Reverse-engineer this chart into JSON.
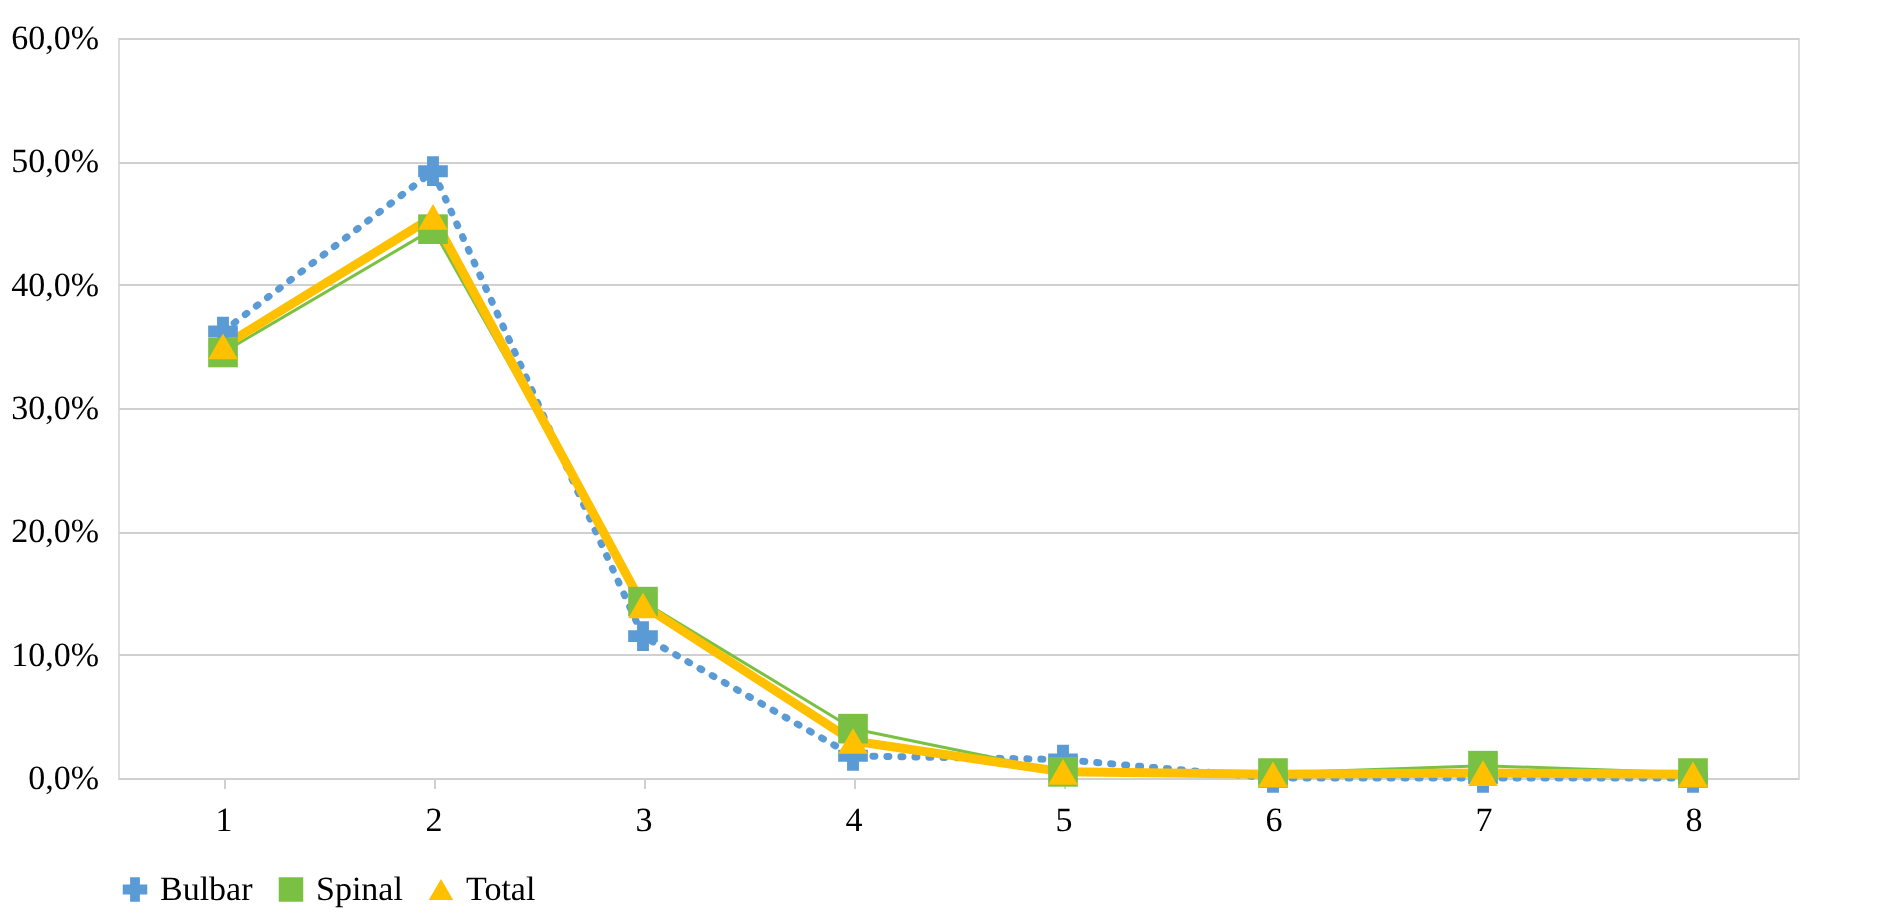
{
  "chart_data": {
    "type": "line",
    "categories": [
      "1",
      "2",
      "3",
      "4",
      "5",
      "6",
      "7",
      "8"
    ],
    "series": [
      {
        "name": "Bulbar",
        "color": "#5b9bd5",
        "line_style": "dotted",
        "marker": "cross",
        "values": [
          36.2,
          49.2,
          11.5,
          1.8,
          1.5,
          0.0,
          0.0,
          0.0
        ]
      },
      {
        "name": "Spinal",
        "color": "#7ac143",
        "line_style": "solid",
        "marker": "square",
        "values": [
          34.5,
          44.5,
          14.3,
          4.0,
          0.5,
          0.4,
          1.0,
          0.4
        ]
      },
      {
        "name": "Total",
        "color": "#ffc000",
        "line_style": "solid",
        "marker": "triangle",
        "values": [
          35.0,
          45.5,
          14.0,
          3.0,
          0.5,
          0.3,
          0.4,
          0.3
        ]
      }
    ],
    "ylim": [
      0,
      60
    ],
    "yticks": [
      {
        "value": 0,
        "label": "0,0%"
      },
      {
        "value": 10,
        "label": "10,0%"
      },
      {
        "value": 20,
        "label": "20,0%"
      },
      {
        "value": 30,
        "label": "30,0%"
      },
      {
        "value": 40,
        "label": "40,0%"
      },
      {
        "value": 50,
        "label": "50,0%"
      },
      {
        "value": 60,
        "label": "60,0%"
      }
    ],
    "grid": "y",
    "legend": "bottom"
  }
}
